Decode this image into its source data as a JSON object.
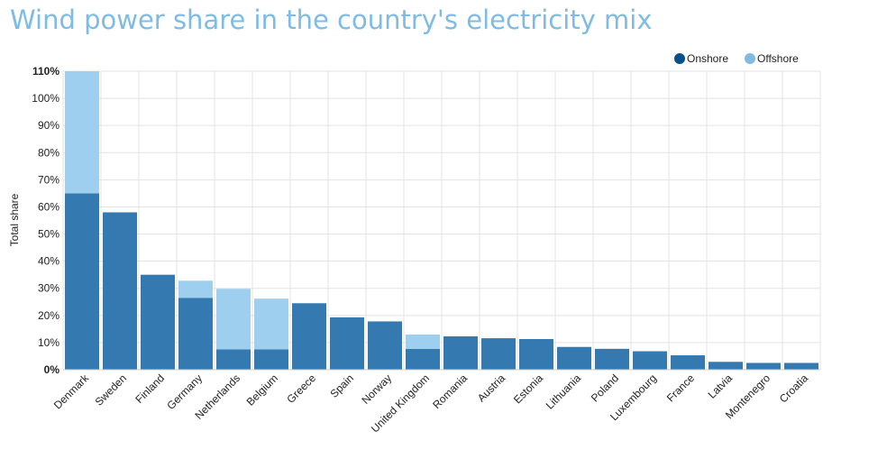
{
  "title": "Wind power share in the country's electricity mix",
  "colors": {
    "onshore": "#3479b0",
    "offshore": "#9ecfef",
    "legend_onshore": "#0b4f8a",
    "legend_offshore": "#7fbbe3",
    "grid": "#e3e3e3"
  },
  "chart_data": {
    "type": "bar",
    "stacked": true,
    "ylabel": "Total share",
    "xlabel": "",
    "ylim": [
      0,
      110
    ],
    "yticks": [
      "0%",
      "10%",
      "20%",
      "30%",
      "40%",
      "50%",
      "60%",
      "70%",
      "80%",
      "90%",
      "100%",
      "110%"
    ],
    "grid": true,
    "legend_position": "top-right",
    "categories": [
      "Denmark",
      "Sweden",
      "Finland",
      "Germany",
      "Netherlands",
      "Belgium",
      "Greece",
      "Spain",
      "Norway",
      "United Kingdom",
      "Romania",
      "Austria",
      "Estonia",
      "Lithuania",
      "Poland",
      "Luxembourg",
      "France",
      "Latvia",
      "Montenegro",
      "Croatia"
    ],
    "series": [
      {
        "name": "Onshore",
        "values": [
          65,
          58,
          35,
          26.5,
          7.5,
          7.5,
          24.5,
          19.3,
          17.8,
          7.7,
          12.3,
          11.6,
          11.3,
          8.4,
          7.7,
          6.8,
          5.3,
          2.9,
          2.5,
          2.5
        ]
      },
      {
        "name": "Offshore",
        "values": [
          45,
          0,
          0,
          6.3,
          22.3,
          18.7,
          0,
          0,
          0,
          5.3,
          0,
          0,
          0,
          0,
          0,
          0,
          0,
          0,
          0,
          0
        ]
      }
    ]
  }
}
